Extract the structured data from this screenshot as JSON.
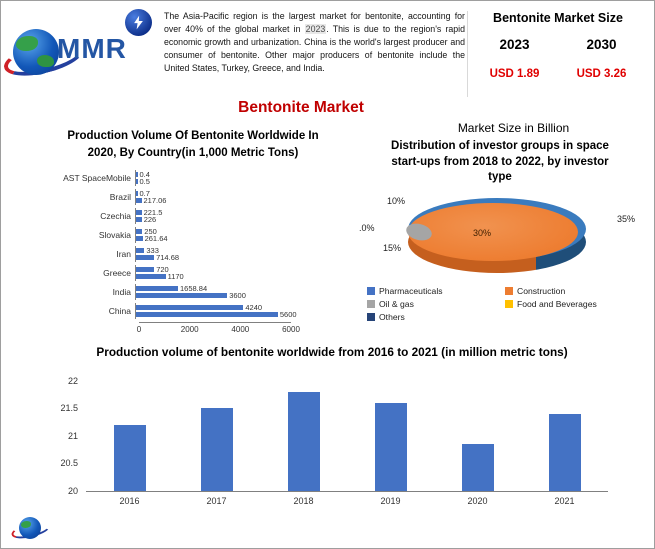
{
  "logo": {
    "text": "MMR"
  },
  "header": {
    "paragraph_before": "The Asia-Pacific region is the largest market for bentonite, accounting for over 40% of the global market in ",
    "paragraph_year": "2023",
    "paragraph_after": ". This is due to the region's rapid economic growth and urbanization. China is the world's largest producer and consumer of bentonite. Other major producers of bentonite include the United States, Turkey, Greece, and India."
  },
  "market_size": {
    "title": "Bentonite Market Size",
    "year_start": "2023",
    "year_end": "2030",
    "value_start": "USD 1.89",
    "value_end": "USD 3.26"
  },
  "main_title": "Bentonite Market",
  "market_size_in_billion": "Market Size in Billion",
  "chart_data": [
    {
      "type": "bar",
      "orientation": "horizontal",
      "title": "Production Volume Of Bentonite Worldwide In 2020, By Country(in 1,000 Metric Tons)",
      "categories": [
        "AST SpaceMobile",
        "Brazil",
        "Czechia",
        "Slovakia",
        "Iran",
        "Greece",
        "India",
        "China"
      ],
      "series": [
        {
          "name": "bar-1",
          "values": [
            0.4,
            0.7,
            221.5,
            250,
            333,
            720,
            1658.84,
            4240
          ]
        },
        {
          "name": "bar-2",
          "values": [
            0.5,
            217.06,
            226,
            261.64,
            714.68,
            1170,
            3600,
            5600
          ]
        }
      ],
      "value_labels": [
        [
          "0.4",
          "0.5"
        ],
        [
          "0.7",
          "217.06"
        ],
        [
          "221.5",
          "226"
        ],
        [
          "250",
          "261.64"
        ],
        [
          "333",
          "714.68"
        ],
        [
          "720",
          "1170"
        ],
        [
          "1658.84",
          "3600"
        ],
        [
          "4240",
          "5600"
        ]
      ],
      "xlim": [
        0,
        6000
      ],
      "xticks": [
        0,
        2000,
        4000,
        6000
      ],
      "bar_color": "#4472C4",
      "grid": false
    },
    {
      "type": "pie",
      "title": "Distribution of investor groups in space start-ups from 2018 to 2022, by investor type",
      "slices": [
        {
          "label": "Pharmaceuticals",
          "pct_label": "35%",
          "value": 35,
          "color": "#4472C4"
        },
        {
          "label": "Construction",
          "pct_label": "30%",
          "value": 30,
          "color": "#ED7D31"
        },
        {
          "label": "Oil & gas",
          "pct_label": "15%",
          "value": 15,
          "color": "#A5A5A5"
        },
        {
          "label": "Food and Beverages",
          "pct_label": ".0%",
          "value": 0,
          "color": "#FFC000"
        },
        {
          "label": "Others",
          "pct_label": "10%",
          "value": 10,
          "color": "#264478"
        }
      ],
      "style": "3d",
      "legend_position": "bottom"
    },
    {
      "type": "bar",
      "orientation": "vertical",
      "title": "Production volume of bentonite worldwide from 2016 to 2021 (in million metric tons)",
      "categories": [
        "2016",
        "2017",
        "2018",
        "2019",
        "2020",
        "2021"
      ],
      "values": [
        21.2,
        21.5,
        21.8,
        21.6,
        20.85,
        21.4
      ],
      "ylim": [
        20,
        22
      ],
      "yticks": [
        20,
        20.5,
        21,
        21.5,
        22
      ],
      "bar_color": "#4472C4",
      "grid": false
    }
  ]
}
